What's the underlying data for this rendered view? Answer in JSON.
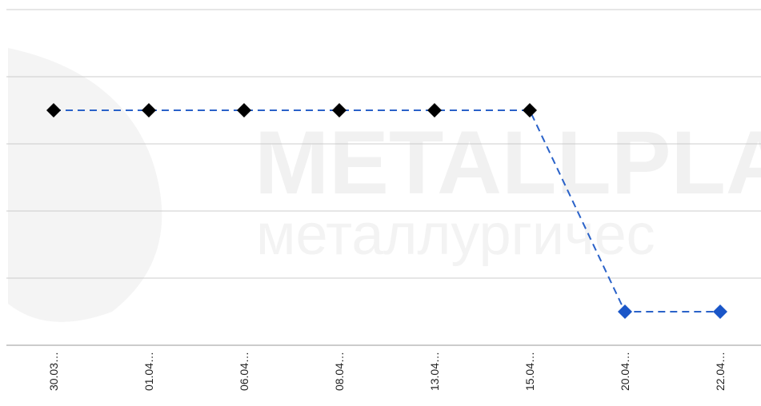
{
  "chart_data": {
    "type": "line",
    "categories": [
      "30.03…",
      "01.04…",
      "06.04…",
      "08.04…",
      "13.04…",
      "15.04…",
      "20.04…",
      "22.04…"
    ],
    "series": [
      {
        "color": "#2a62c9",
        "values": [
          3.5,
          3.5,
          3.5,
          3.5,
          3.5,
          3.5,
          0.5,
          0.5
        ],
        "marker_colors": [
          "#000000",
          "#000000",
          "#000000",
          "#000000",
          "#000000",
          "#000000",
          "#1a56c8",
          "#1a56c8"
        ]
      }
    ],
    "ylim": [
      0,
      5
    ],
    "yticks": [
      0,
      1,
      2,
      3,
      4,
      5
    ],
    "grid": true,
    "watermark": [
      "METALLPLA",
      "металлургичес"
    ]
  }
}
